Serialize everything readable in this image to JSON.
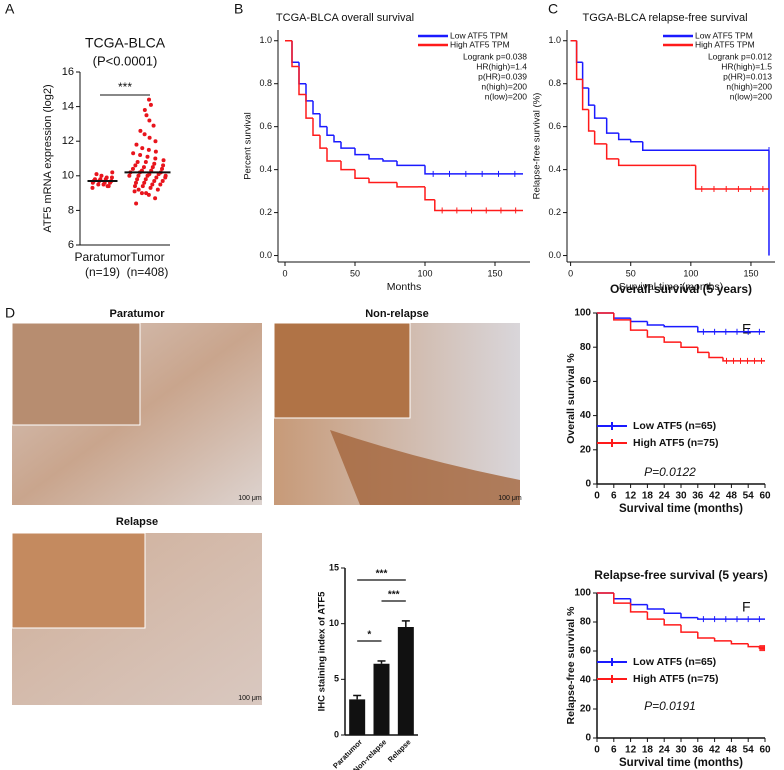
{
  "chart_data": [
    {
      "type": "dot",
      "panel": "A",
      "title": "TCGA-BLCA",
      "subtitle": "(P<0.0001)",
      "significance": "***",
      "ylabel": "ATF5 mRNA expression (log2)",
      "categories": [
        "Paratumor",
        "Tumor"
      ],
      "category_notes": [
        "(n=19)",
        "(n=408)"
      ],
      "points": [
        [
          9.3,
          9.4,
          9.5,
          9.5,
          9.6,
          9.6,
          9.6,
          9.7,
          9.7,
          9.7,
          9.8,
          9.8,
          9.8,
          9.9,
          9.9,
          10.0,
          10.1,
          10.2,
          9.4
        ],
        [
          8.4,
          8.7,
          8.9,
          9.0,
          9.1,
          9.2,
          9.3,
          9.4,
          9.4,
          9.5,
          9.5,
          9.6,
          9.6,
          9.7,
          9.7,
          9.8,
          9.8,
          9.9,
          9.9,
          10.0,
          10.0,
          10.0,
          10.1,
          10.1,
          10.2,
          10.2,
          10.2,
          10.3,
          10.3,
          10.4,
          10.4,
          10.5,
          10.5,
          10.6,
          10.6,
          10.7,
          10.8,
          10.8,
          10.9,
          11.0,
          11.1,
          11.2,
          11.3,
          11.4,
          11.5,
          11.6,
          11.8,
          12.0,
          12.2,
          12.4,
          12.6,
          12.9,
          13.2,
          13.5,
          13.8,
          14.1,
          14.4,
          9.0,
          9.2,
          10.0
        ]
      ],
      "means": [
        9.7,
        10.2
      ],
      "color": "#e8141c",
      "ylim": [
        6,
        16
      ],
      "yticks": [
        6,
        8,
        10,
        12,
        14,
        16
      ]
    },
    {
      "type": "km",
      "panel": "B",
      "title": "TCGA-BLCA overall survival",
      "xlabel": "Months",
      "ylabel": "Percent survival",
      "series": [
        {
          "name": "Low ATF5 TPM",
          "color": "#1a1aff",
          "x": [
            0,
            5,
            10,
            15,
            20,
            25,
            30,
            35,
            40,
            50,
            60,
            70,
            80,
            100,
            170
          ],
          "values": [
            1,
            0.9,
            0.8,
            0.72,
            0.66,
            0.6,
            0.56,
            0.53,
            0.5,
            0.47,
            0.45,
            0.44,
            0.42,
            0.38,
            0.38
          ]
        },
        {
          "name": "High ATF5 TPM",
          "color": "#ff1a1a",
          "x": [
            0,
            5,
            10,
            15,
            20,
            25,
            30,
            40,
            50,
            60,
            80,
            95,
            100,
            107,
            170
          ],
          "values": [
            1,
            0.88,
            0.75,
            0.64,
            0.56,
            0.5,
            0.44,
            0.4,
            0.36,
            0.34,
            0.32,
            0.32,
            0.26,
            0.21,
            0.21
          ]
        }
      ],
      "annotations": [
        "Logrank p=0.038",
        "HR(high)=1.4",
        "p(HR)=0.039",
        "n(high)=200",
        "n(low)=200"
      ],
      "xlim": [
        -5,
        175
      ],
      "xticks": [
        0,
        50,
        100,
        150
      ],
      "ylim": [
        -0.03,
        1.05
      ],
      "yticks": [
        {
          "value": 0,
          "label": "0.0"
        },
        {
          "value": 0.2,
          "label": "0.2"
        },
        {
          "value": 0.4,
          "label": "0.4"
        },
        {
          "value": 0.6,
          "label": "0.6"
        },
        {
          "value": 0.8,
          "label": "0.8"
        },
        {
          "value": 1,
          "label": "1.0"
        }
      ]
    },
    {
      "type": "km",
      "panel": "C",
      "title": "TGGA-BLCA relapse-free survival",
      "xlabel": "Survival time (months)",
      "ylabel": "Relapse-free survival (%)",
      "series": [
        {
          "name": "Low ATF5 TPM",
          "color": "#1a1aff",
          "x": [
            0,
            5,
            10,
            15,
            20,
            30,
            40,
            50,
            60,
            165,
            165
          ],
          "values": [
            1,
            0.9,
            0.78,
            0.7,
            0.64,
            0.57,
            0.54,
            0.53,
            0.49,
            0.49,
            0
          ]
        },
        {
          "name": "High ATF5 TPM",
          "color": "#ff1a1a",
          "x": [
            0,
            5,
            10,
            15,
            20,
            30,
            40,
            100,
            104,
            165
          ],
          "values": [
            1,
            0.82,
            0.68,
            0.58,
            0.52,
            0.45,
            0.42,
            0.42,
            0.31,
            0.31
          ]
        }
      ],
      "annotations": [
        "Logrank p=0.012",
        "HR(high)=1.5",
        "p(HR)=0.013",
        "n(high)=200",
        "n(low)=200"
      ],
      "xlim": [
        -3,
        170
      ],
      "xticks": [
        0,
        50,
        100,
        150
      ],
      "ylim": [
        -0.03,
        1.05
      ],
      "yticks": [
        {
          "value": 0,
          "label": "0.0"
        },
        {
          "value": 0.2,
          "label": "0.2"
        },
        {
          "value": 0.4,
          "label": "0.4"
        },
        {
          "value": 0.6,
          "label": "0.6"
        },
        {
          "value": 0.8,
          "label": "0.8"
        },
        {
          "value": 1,
          "label": "1.0"
        }
      ]
    },
    {
      "type": "bar",
      "panel": "D",
      "image_labels": [
        "Paratumor",
        "Non-relapse",
        "Relapse"
      ],
      "scale_bar": "100 μm",
      "ylabel": "IHC staining index of ATF5",
      "categories": [
        "Paratumor",
        "Non-relapse",
        "Relapse"
      ],
      "values": [
        3.2,
        6.4,
        9.7
      ],
      "errors": [
        0.35,
        0.25,
        0.55
      ],
      "color": "#111111",
      "significance": [
        "***",
        "***",
        "*"
      ],
      "ylim": [
        0,
        15
      ],
      "yticks": [
        0,
        5,
        10,
        15
      ]
    },
    {
      "type": "km",
      "panel": "E",
      "title": "Overall survival (5 years)",
      "xlabel": "Survival time (months)",
      "ylabel": "Overall survival %",
      "series": [
        {
          "name": "Low ATF5 (n=65)",
          "color": "#1a1aff",
          "x": [
            0,
            6,
            12,
            18,
            24,
            36,
            60
          ],
          "values": [
            100,
            97,
            95,
            93,
            92,
            89,
            89
          ]
        },
        {
          "name": "High ATF5 (n=75)",
          "color": "#ff1a1a",
          "x": [
            0,
            6,
            12,
            18,
            24,
            30,
            36,
            40,
            45,
            60
          ],
          "values": [
            100,
            96,
            90,
            86,
            83,
            80,
            77,
            74,
            72,
            72
          ]
        }
      ],
      "annotations": [
        "P=0.0122"
      ],
      "xlim": [
        0,
        60
      ],
      "xticks": [
        0,
        6,
        12,
        18,
        24,
        30,
        36,
        42,
        48,
        54,
        60
      ],
      "ylim": [
        0,
        100
      ],
      "yticks": [
        0,
        20,
        40,
        60,
        80,
        100
      ]
    },
    {
      "type": "km",
      "panel": "F",
      "title": "Relapse-free survival (5 years)",
      "xlabel": "Survival time (months)",
      "ylabel": "Relapse-free survival %",
      "series": [
        {
          "name": "Low ATF5 (n=65)",
          "color": "#1a1aff",
          "x": [
            0,
            6,
            12,
            18,
            24,
            30,
            36,
            60
          ],
          "values": [
            100,
            96,
            92,
            89,
            86,
            83,
            82,
            82
          ]
        },
        {
          "name": "High ATF5 (n=75)",
          "color": "#ff1a1a",
          "x": [
            0,
            6,
            12,
            18,
            24,
            30,
            36,
            42,
            48,
            54,
            58,
            60
          ],
          "values": [
            100,
            93,
            87,
            82,
            78,
            73,
            69,
            67,
            65,
            63,
            62,
            62
          ]
        }
      ],
      "annotations": [
        "P=0.0191"
      ],
      "xlim": [
        0,
        60
      ],
      "xticks": [
        0,
        6,
        12,
        18,
        24,
        30,
        36,
        42,
        48,
        54,
        60
      ],
      "ylim": [
        0,
        100
      ],
      "yticks": [
        0,
        20,
        40,
        60,
        80,
        100
      ]
    }
  ]
}
